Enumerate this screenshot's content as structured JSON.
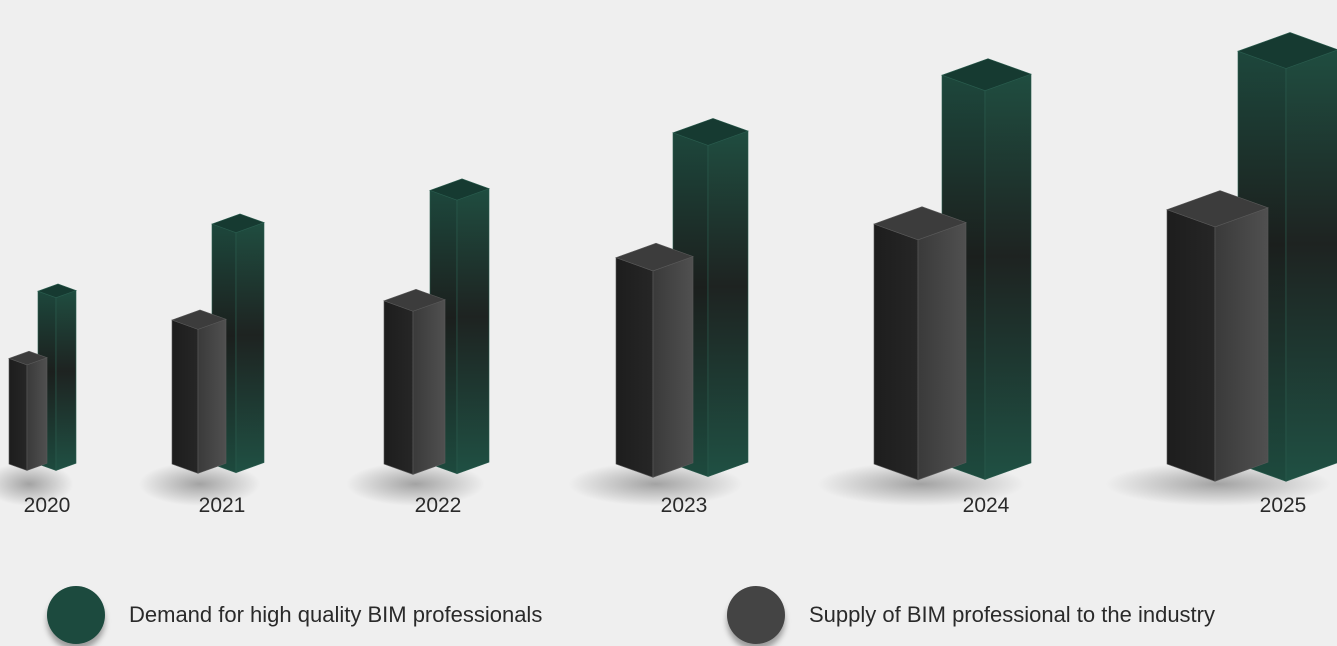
{
  "chart_data": {
    "type": "bar",
    "style": "3d-columns",
    "categories": [
      "2020",
      "2021",
      "2022",
      "2023",
      "2024",
      "2025"
    ],
    "series": [
      {
        "name": "Demand for high quality BIM professionals",
        "color": "#1c4a3e",
        "values": [
          180,
          250,
          285,
          345,
          405,
          430
        ]
      },
      {
        "name": "Supply of BIM professional to the industry",
        "color": "#444444",
        "values": [
          110,
          150,
          170,
          215,
          250,
          265
        ]
      }
    ],
    "title": "",
    "xlabel": "",
    "ylabel": "",
    "ylim": [
      0,
      430
    ],
    "grid": false,
    "legend_position": "bottom"
  },
  "legend": {
    "demand_label": "Demand for high quality BIM professionals",
    "supply_label": "Supply of BIM professional to the industry",
    "demand_color": "#1c4a3e",
    "supply_color": "#444444"
  }
}
